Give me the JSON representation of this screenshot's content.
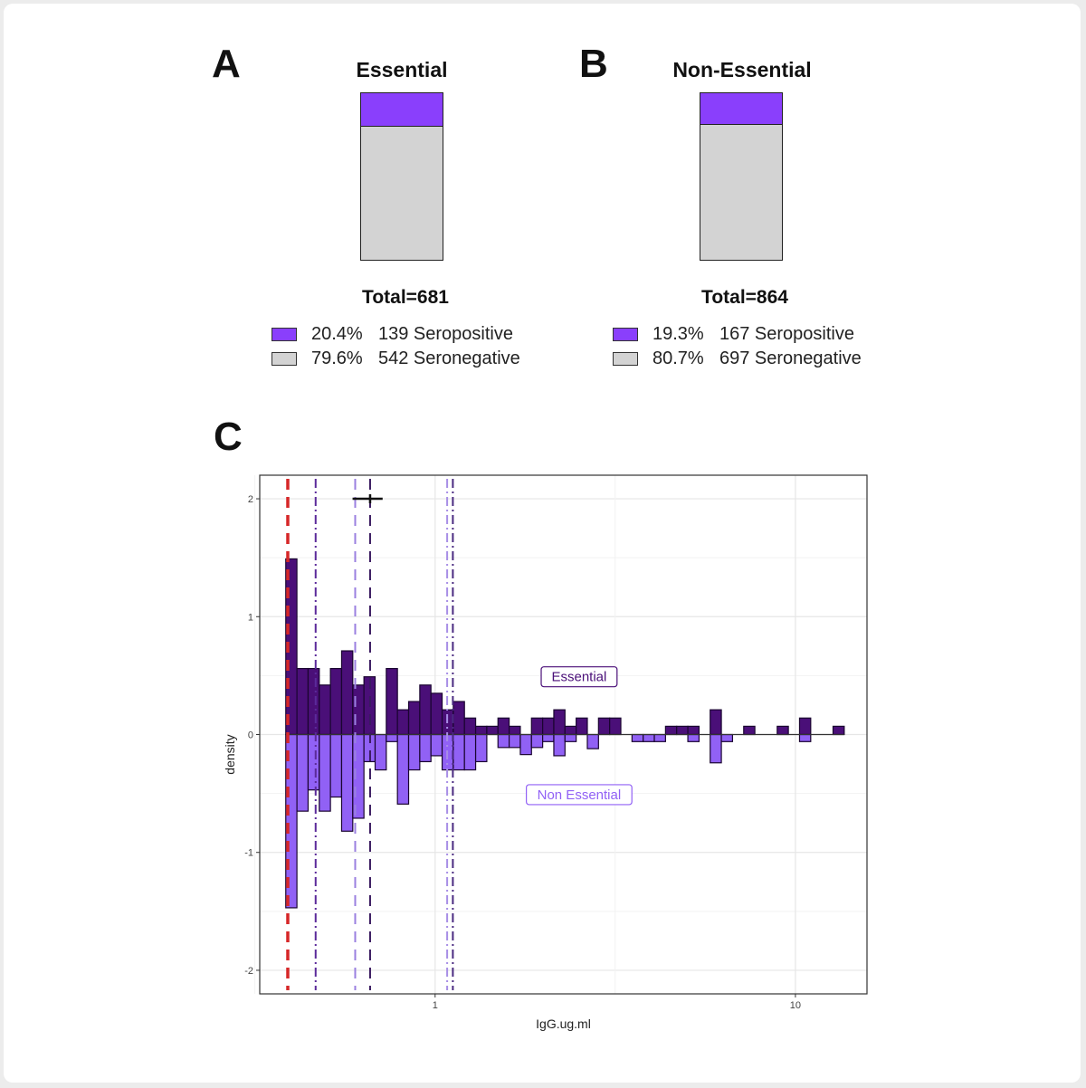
{
  "colors": {
    "seropositive": "#8a3ffc",
    "seronegative": "#d3d3d3",
    "essential": "#4a0f78",
    "non_essential": "#9161f5",
    "threshold": "#d62728"
  },
  "panels": [
    {
      "letter": "A",
      "title": "Essential",
      "total": "Total=681",
      "seropositive_fraction": 0.204,
      "legend": [
        {
          "pct": "20.4%",
          "text": "139 Seropositive"
        },
        {
          "pct": "79.6%",
          "text": "542 Seronegative"
        }
      ]
    },
    {
      "letter": "B",
      "title": "Non-Essential",
      "total": "Total=864",
      "seropositive_fraction": 0.193,
      "legend": [
        {
          "pct": "19.3%",
          "text": "167 Seropositive"
        },
        {
          "pct": "80.7%",
          "text": "697 Seronegative"
        }
      ]
    }
  ],
  "chart_data": {
    "letter": "C",
    "type": "bar",
    "xlabel": "IgG.ug.ml",
    "ylabel": "density",
    "x_scale": "log10",
    "xlim": [
      0.326,
      15.8
    ],
    "ylim": [
      -2.2,
      2.2
    ],
    "x_ticks": [
      {
        "value": 1,
        "label": "1"
      },
      {
        "value": 10,
        "label": "10"
      }
    ],
    "y_ticks": [
      {
        "value": 2,
        "label": "2"
      },
      {
        "value": 1,
        "label": "1"
      },
      {
        "value": 0,
        "label": "0"
      },
      {
        "value": -1,
        "label": "-1"
      },
      {
        "value": -2,
        "label": "-2"
      }
    ],
    "grid": true,
    "bin_start": 0.385,
    "bin_width_log10": 0.031,
    "series": [
      {
        "name": "Essential",
        "values": [
          1.49,
          0.56,
          0.56,
          0.42,
          0.56,
          0.71,
          0.42,
          0.49,
          0,
          0.56,
          0.21,
          0.28,
          0.42,
          0.35,
          0.21,
          0.28,
          0.14,
          0.07,
          0.07,
          0.14,
          0.07,
          0,
          0.14,
          0.14,
          0.21,
          0.07,
          0.14,
          0,
          0.14,
          0.14,
          0,
          0,
          0,
          0,
          0.07,
          0.07,
          0.07,
          0,
          0.21,
          0,
          0,
          0.07,
          0,
          0,
          0.07,
          0,
          0.14,
          0,
          0,
          0.07
        ]
      },
      {
        "name": "Non Essential",
        "values": [
          -1.47,
          -0.65,
          -0.47,
          -0.65,
          -0.53,
          -0.82,
          -0.71,
          -0.23,
          -0.3,
          -0.06,
          -0.59,
          -0.3,
          -0.23,
          -0.18,
          -0.3,
          -0.3,
          -0.3,
          -0.23,
          0,
          -0.11,
          -0.11,
          -0.17,
          -0.11,
          -0.06,
          -0.18,
          -0.06,
          0,
          -0.12,
          0,
          0,
          0,
          -0.06,
          -0.06,
          -0.06,
          0,
          0,
          -0.06,
          0,
          -0.24,
          -0.06,
          0,
          0,
          0,
          0,
          0,
          0,
          -0.06,
          0,
          0,
          0
        ]
      }
    ],
    "vlines": [
      {
        "x": 0.39,
        "style": "dashed",
        "color": "#d62728"
      },
      {
        "x": 0.466,
        "style": "dotdash",
        "color": "#5b2a9a"
      },
      {
        "x": 0.6,
        "style": "dashed",
        "color": "#9a80e0"
      },
      {
        "x": 0.66,
        "style": "dashed",
        "color": "#3a1a60"
      },
      {
        "x": 1.08,
        "style": "dotdash",
        "color": "#a88ee6"
      },
      {
        "x": 1.12,
        "style": "dotdash",
        "color": "#4a2a80"
      }
    ],
    "errorbar": {
      "y": 2,
      "x_low": 0.59,
      "x_high": 0.715,
      "x_mid": 0.66
    },
    "annotations": [
      {
        "text": "Essential",
        "x": 2.51,
        "y": 0.49,
        "color": "#4a0f78"
      },
      {
        "text": "Non Essential",
        "x": 2.51,
        "y": -0.51,
        "color": "#9161f5"
      }
    ]
  }
}
